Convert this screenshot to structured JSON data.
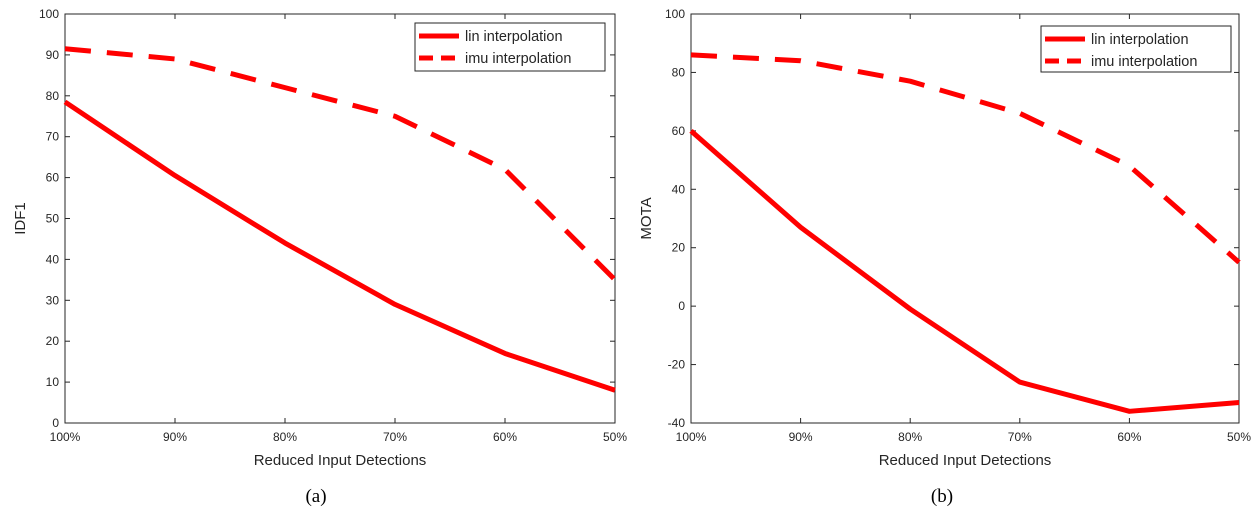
{
  "chart_data": [
    {
      "type": "line",
      "x": [
        "100%",
        "90%",
        "80%",
        "70%",
        "60%",
        "50%"
      ],
      "xlabel": "Reduced Input Detections",
      "ylabel": "IDF1",
      "ylim": [
        0,
        100
      ],
      "yticks": [
        0,
        10,
        20,
        30,
        40,
        50,
        60,
        70,
        80,
        90,
        100
      ],
      "grid": false,
      "legend_position": "top-right",
      "caption": "(a)",
      "series": [
        {
          "name": "lin interpolation",
          "style": "solid",
          "color": "#ff0000",
          "values": [
            78.5,
            60.5,
            44,
            29,
            17,
            8
          ]
        },
        {
          "name": "imu interpolation",
          "style": "dashed",
          "color": "#ff0000",
          "values": [
            91.5,
            89,
            82,
            75,
            62,
            35
          ]
        }
      ]
    },
    {
      "type": "line",
      "x": [
        "100%",
        "90%",
        "80%",
        "70%",
        "60%",
        "50%"
      ],
      "xlabel": "Reduced Input Detections",
      "ylabel": "MOTA",
      "ylim": [
        -40,
        100
      ],
      "yticks": [
        -40,
        -20,
        0,
        20,
        40,
        60,
        80,
        100
      ],
      "grid": false,
      "legend_position": "top-right",
      "caption": "(b)",
      "series": [
        {
          "name": "lin interpolation",
          "style": "solid",
          "color": "#ff0000",
          "values": [
            60,
            27,
            -1,
            -26,
            -36,
            -33
          ]
        },
        {
          "name": "imu interpolation",
          "style": "dashed",
          "color": "#ff0000",
          "values": [
            86,
            84,
            77,
            66,
            48,
            15
          ]
        }
      ]
    }
  ]
}
